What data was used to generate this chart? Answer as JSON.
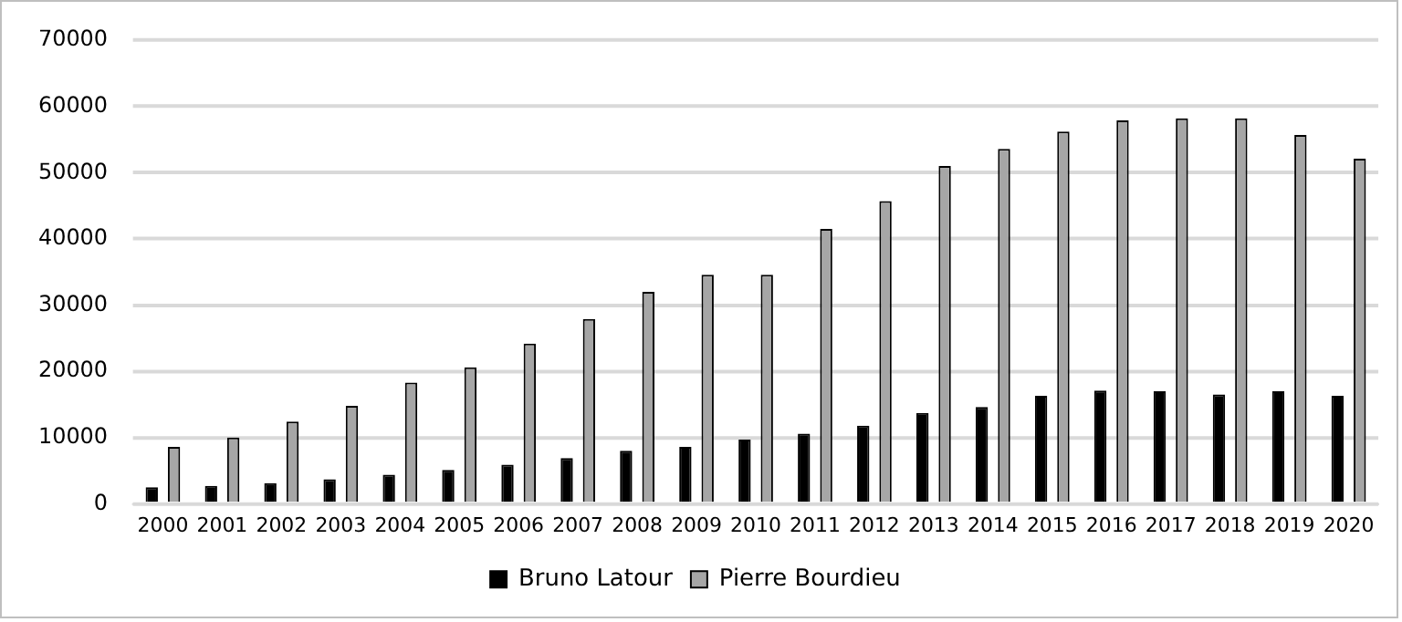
{
  "chart_data": {
    "type": "bar",
    "categories": [
      "2000",
      "2001",
      "2002",
      "2003",
      "2004",
      "2005",
      "2006",
      "2007",
      "2008",
      "2009",
      "2010",
      "2011",
      "2012",
      "2013",
      "2014",
      "2015",
      "2016",
      "2017",
      "2018",
      "2019",
      "2020"
    ],
    "series": [
      {
        "name": "Bruno Latour",
        "color": "#000000",
        "values": [
          2500,
          2700,
          3100,
          3700,
          4400,
          5100,
          5900,
          6900,
          8000,
          8600,
          9700,
          10600,
          11800,
          13700,
          14600,
          16300,
          17100,
          17000,
          16500,
          17000,
          16300
        ]
      },
      {
        "name": "Pierre Bourdieu",
        "color": "#a6a6a6",
        "values": [
          8600,
          10000,
          12400,
          14800,
          18300,
          20600,
          24200,
          27900,
          32000,
          34600,
          34600,
          41500,
          45700,
          51000,
          53600,
          56200,
          57900,
          58200,
          58200,
          55700,
          52100
        ]
      }
    ],
    "ylim": [
      0,
      70000
    ],
    "yticks": [
      0,
      10000,
      20000,
      30000,
      40000,
      50000,
      60000,
      70000
    ],
    "grid": "y",
    "legend": "bottom"
  }
}
